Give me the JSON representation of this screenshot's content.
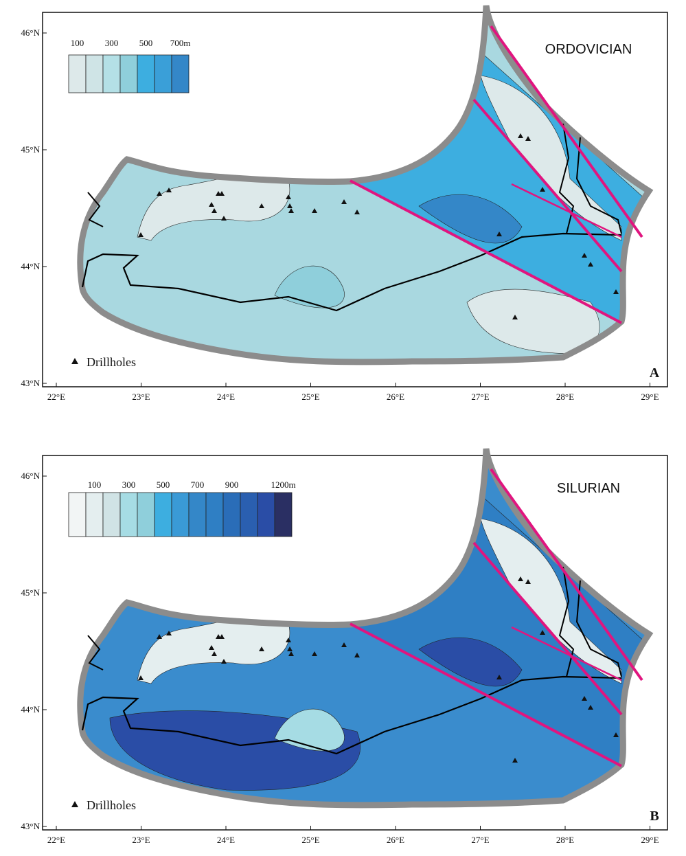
{
  "panels": [
    {
      "title": "ORDOVICIAN",
      "letter": "A",
      "note": "Drillholes",
      "legend_labels": [
        "100",
        "300",
        "500",
        "700m"
      ],
      "legend_colors": [
        "#dde9ea",
        "#cfe4e6",
        "#b4e0e6",
        "#8fcfdb",
        "#3daee0",
        "#3a9fd8",
        "#3487c8"
      ],
      "lat_labels": [
        "46°N",
        "45°N",
        "44°N",
        "43°N"
      ],
      "lon_labels": [
        "22°E",
        "23°E",
        "24°E",
        "25°E",
        "26°E",
        "27°E",
        "28°E",
        "29°E"
      ]
    },
    {
      "title": "SILURIAN",
      "letter": "B",
      "note": "Drillholes",
      "legend_labels": [
        "100",
        "300",
        "500",
        "700",
        "900",
        "1200m"
      ],
      "legend_colors": [
        "#f2f5f5",
        "#e4eeef",
        "#d0e3e5",
        "#a6dce4",
        "#8fcfdb",
        "#3daee0",
        "#3a9ad6",
        "#3487c8",
        "#2f7fc4",
        "#2a6db8",
        "#2a5fb0",
        "#2a4da6",
        "#2a2f63"
      ],
      "lat_labels": [
        "46°N",
        "45°N",
        "44°N",
        "43°N"
      ],
      "lon_labels": [
        "22°E",
        "23°E",
        "24°E",
        "25°E",
        "26°E",
        "27°E",
        "28°E",
        "29°E"
      ]
    }
  ]
}
